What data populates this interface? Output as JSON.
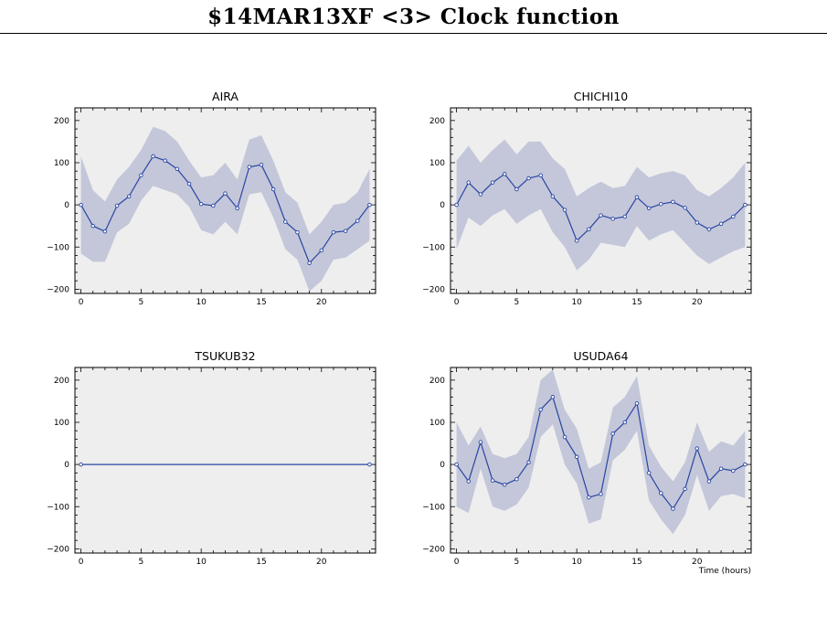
{
  "page": {
    "title": "$14MAR13XF <3>  Clock function"
  },
  "colors": {
    "panel_bg": "#eeeeee",
    "band": "#c3c7d9",
    "line": "#2a45a3",
    "axis": "#000000"
  },
  "chart_data": [
    {
      "type": "line",
      "title": "AIRA",
      "xlim": [
        -0.5,
        24.5
      ],
      "ylim": [
        -210,
        230
      ],
      "xticks": [
        0,
        5,
        10,
        15,
        20
      ],
      "yticks": [
        -200,
        -100,
        0,
        100,
        200
      ],
      "x": [
        0,
        1,
        2,
        3,
        4,
        5,
        6,
        7,
        8,
        9,
        10,
        11,
        12,
        13,
        14,
        15,
        16,
        17,
        18,
        19,
        20,
        21,
        22,
        23,
        24
      ],
      "values": [
        0,
        -50,
        -63,
        -2,
        20,
        70,
        115,
        105,
        85,
        50,
        2,
        -2,
        27,
        -8,
        90,
        95,
        37,
        -40,
        -65,
        -138,
        -108,
        -65,
        -62,
        -38,
        0
      ],
      "band_upper": [
        115,
        35,
        8,
        60,
        90,
        130,
        185,
        175,
        150,
        105,
        65,
        70,
        100,
        60,
        155,
        165,
        105,
        30,
        5,
        -70,
        -40,
        0,
        5,
        30,
        85
      ],
      "band_lower": [
        -115,
        -135,
        -135,
        -65,
        -45,
        10,
        45,
        35,
        25,
        -5,
        -60,
        -70,
        -40,
        -70,
        25,
        30,
        -30,
        -105,
        -130,
        -205,
        -180,
        -130,
        -125,
        -105,
        -85
      ],
      "xlabel": "",
      "ylabel": ""
    },
    {
      "type": "line",
      "title": "CHICHI10",
      "xlim": [
        -0.5,
        24.5
      ],
      "ylim": [
        -210,
        230
      ],
      "xticks": [
        0,
        5,
        10,
        15,
        20
      ],
      "yticks": [
        -200,
        -100,
        0,
        100,
        200
      ],
      "x": [
        0,
        1,
        2,
        3,
        4,
        5,
        6,
        7,
        8,
        9,
        10,
        11,
        12,
        13,
        14,
        15,
        16,
        17,
        18,
        19,
        20,
        21,
        22,
        23,
        24
      ],
      "values": [
        0,
        53,
        25,
        53,
        73,
        37,
        63,
        70,
        20,
        -12,
        -85,
        -58,
        -25,
        -33,
        -28,
        18,
        -8,
        2,
        7,
        -7,
        -42,
        -58,
        -45,
        -28,
        0
      ],
      "band_upper": [
        105,
        140,
        100,
        130,
        155,
        120,
        150,
        150,
        110,
        85,
        20,
        40,
        55,
        40,
        45,
        90,
        65,
        75,
        80,
        70,
        35,
        20,
        40,
        65,
        100
      ],
      "band_lower": [
        -105,
        -30,
        -50,
        -25,
        -10,
        -45,
        -25,
        -10,
        -65,
        -100,
        -155,
        -130,
        -90,
        -95,
        -100,
        -50,
        -85,
        -70,
        -60,
        -90,
        -120,
        -140,
        -125,
        -110,
        -100
      ],
      "xlabel": "",
      "ylabel": ""
    },
    {
      "type": "line",
      "title": "TSUKUB32",
      "xlim": [
        -0.5,
        24.5
      ],
      "ylim": [
        -210,
        230
      ],
      "xticks": [
        0,
        5,
        10,
        15,
        20
      ],
      "yticks": [
        -200,
        -100,
        0,
        100,
        200
      ],
      "x": [
        0,
        24
      ],
      "values": [
        0,
        0
      ],
      "band_upper": [
        0,
        0
      ],
      "band_lower": [
        0,
        0
      ],
      "xlabel": "",
      "ylabel": ""
    },
    {
      "type": "line",
      "title": "USUDA64",
      "xlim": [
        -0.5,
        24.5
      ],
      "ylim": [
        -210,
        230
      ],
      "xticks": [
        0,
        5,
        10,
        15,
        20
      ],
      "yticks": [
        -200,
        -100,
        0,
        100,
        200
      ],
      "x": [
        0,
        1,
        2,
        3,
        4,
        5,
        6,
        7,
        8,
        9,
        10,
        11,
        12,
        13,
        14,
        15,
        16,
        17,
        18,
        19,
        20,
        21,
        22,
        23,
        24
      ],
      "values": [
        0,
        -40,
        53,
        -38,
        -48,
        -35,
        5,
        130,
        160,
        65,
        18,
        -78,
        -70,
        73,
        100,
        145,
        -20,
        -68,
        -105,
        -58,
        38,
        -40,
        -10,
        -15,
        0
      ],
      "band_upper": [
        100,
        45,
        90,
        25,
        15,
        25,
        65,
        200,
        225,
        130,
        85,
        -10,
        5,
        135,
        160,
        210,
        45,
        -5,
        -40,
        5,
        100,
        30,
        55,
        45,
        80
      ],
      "band_lower": [
        -100,
        -115,
        -10,
        -100,
        -110,
        -95,
        -55,
        65,
        95,
        0,
        -45,
        -140,
        -130,
        10,
        35,
        80,
        -85,
        -130,
        -165,
        -120,
        -25,
        -110,
        -75,
        -70,
        -80
      ],
      "xlabel": "Time (hours)",
      "ylabel": ""
    }
  ]
}
